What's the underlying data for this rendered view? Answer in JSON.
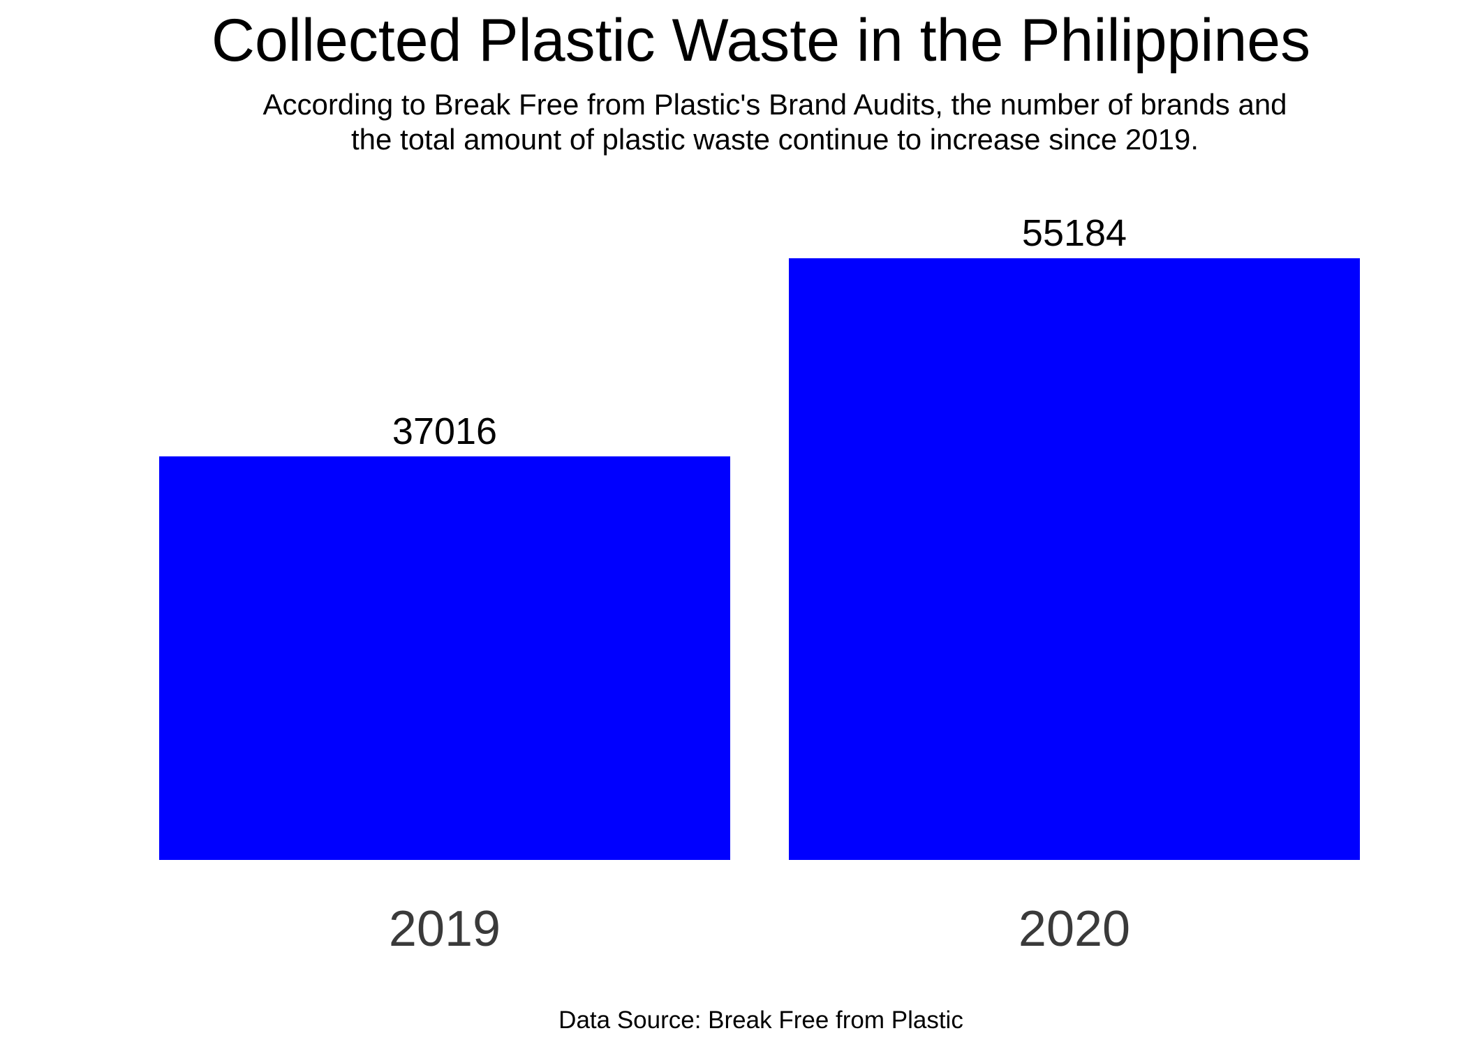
{
  "chart_data": {
    "type": "bar",
    "title": "Collected Plastic Waste in the Philippines",
    "subtitle_lines": [
      "According to Break Free from Plastic's Brand Audits, the number of brands and",
      "the total amount of plastic waste continue to increase since 2019."
    ],
    "categories": [
      "2019",
      "2020"
    ],
    "values": [
      37016,
      55184
    ],
    "data_labels": [
      "37016",
      "55184"
    ],
    "ylim": [
      0,
      55184
    ],
    "grid": false,
    "legend": "none",
    "colors": {
      "bar": "#0000ff",
      "data_label": "#000000",
      "tick_label": "#3a3a3a"
    },
    "caption": "Data Source: Break Free from Plastic"
  }
}
